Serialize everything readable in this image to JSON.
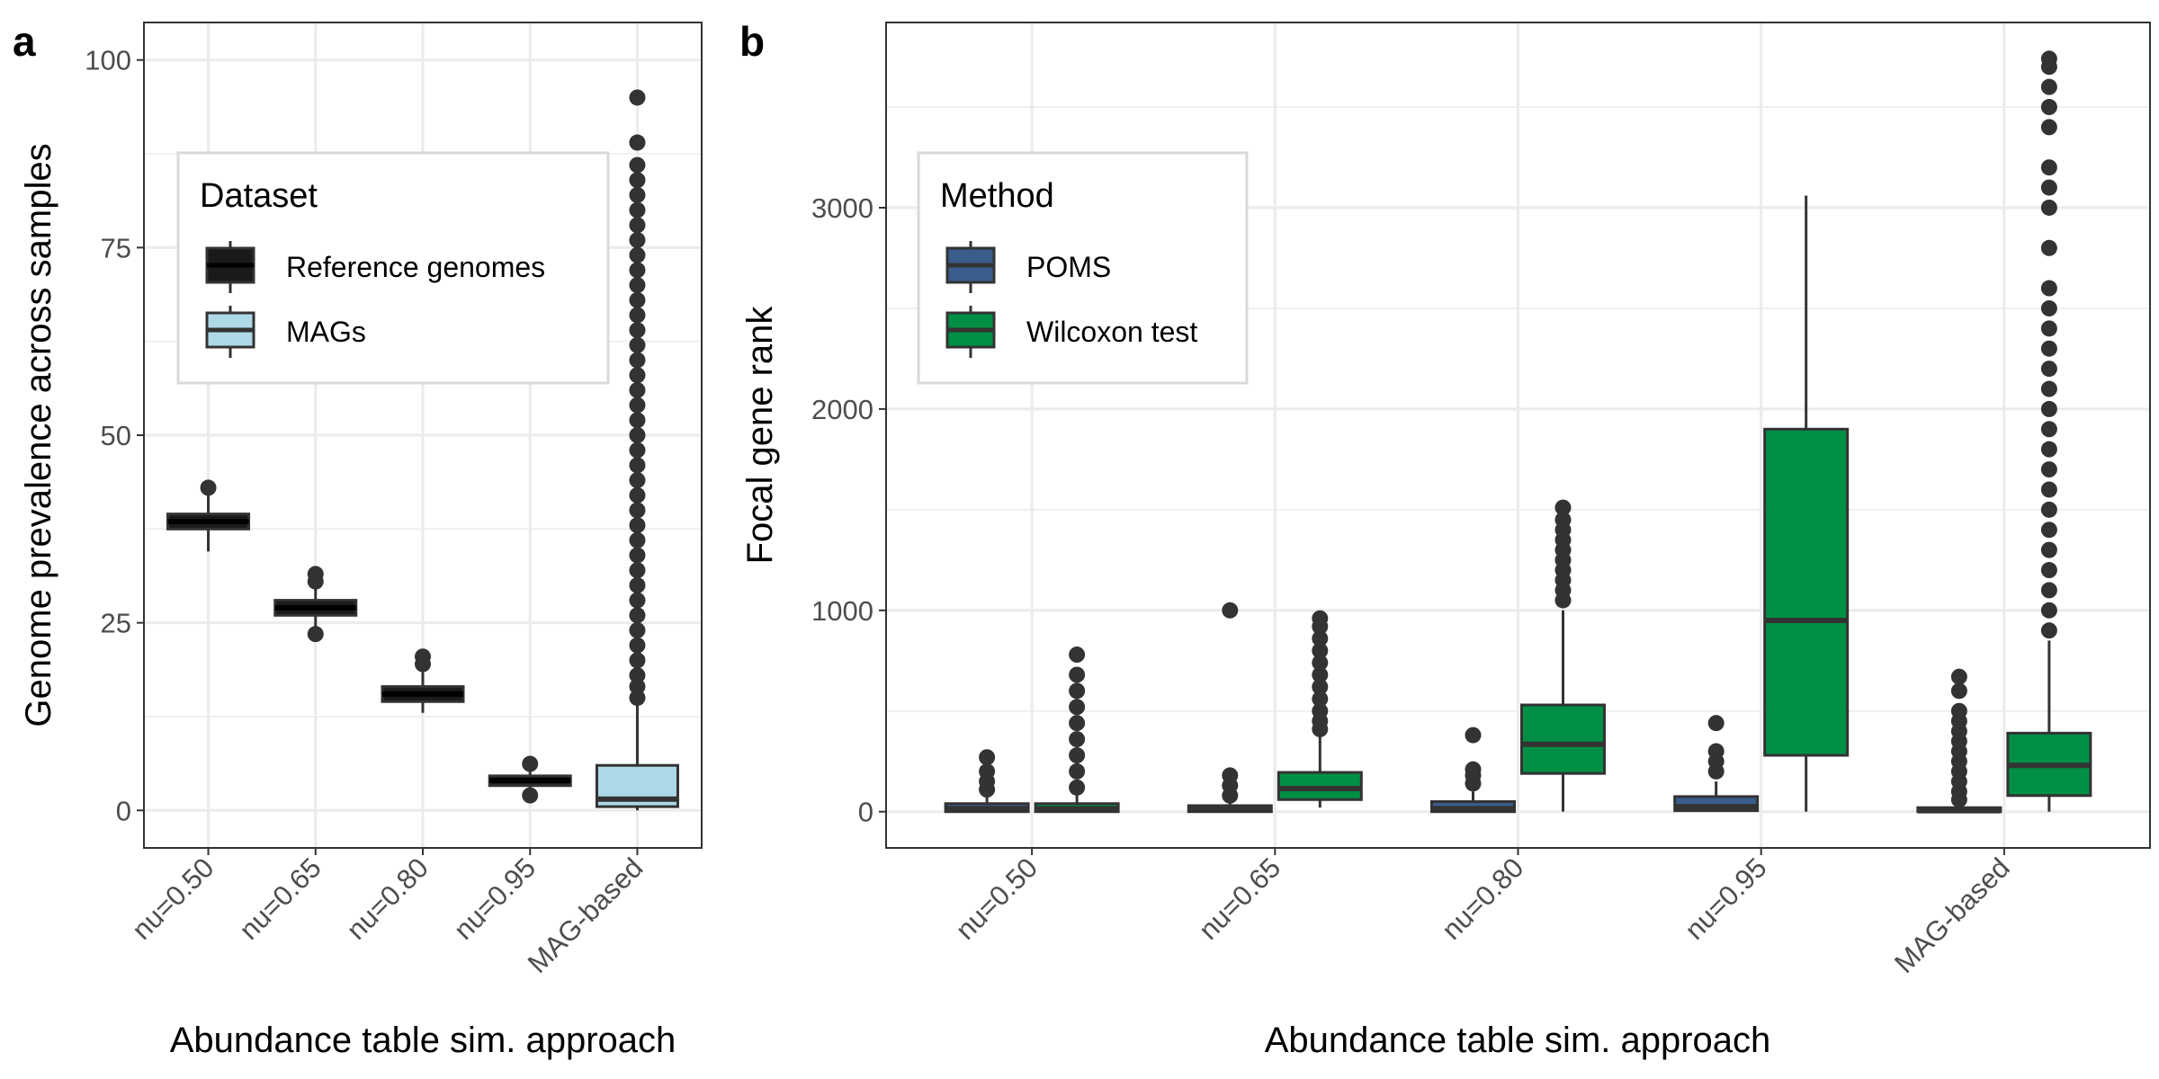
{
  "figure": {
    "colors": {
      "reference_genomes": "#1a1a1a",
      "mags": "#add8e6",
      "poms": "#3a5e8c",
      "wilcoxon": "#008f45",
      "box_stroke": "#333333",
      "grid": "#ebebeb",
      "panel_border": "#333333"
    }
  },
  "chart_data": [
    {
      "type": "box",
      "panel_label": "a",
      "xlabel": "Abundance table sim. approach",
      "ylabel": "Genome prevalence across samples",
      "ylim": [
        -5,
        105
      ],
      "yticks": [
        0,
        25,
        50,
        75,
        100
      ],
      "tick_labels": [
        "0",
        "25",
        "50",
        "75",
        "100"
      ],
      "categories": [
        "nu=0.50",
        "nu=0.65",
        "nu=0.80",
        "nu=0.95",
        "MAG-based"
      ],
      "grid": true,
      "legend": {
        "title": "Dataset",
        "placement": "top-left",
        "entries": [
          {
            "label": "Reference genomes",
            "color": "#1a1a1a"
          },
          {
            "label": "MAGs",
            "color": "#add8e6"
          }
        ]
      },
      "series": [
        {
          "name": "Reference genomes",
          "color": "#1a1a1a",
          "boxes": [
            {
              "category": "nu=0.50",
              "q1": 37.5,
              "median": 38.5,
              "q3": 39.5,
              "whisker_low": 34.5,
              "whisker_high": 42,
              "outliers": [
                43
              ]
            },
            {
              "category": "nu=0.65",
              "q1": 26,
              "median": 27,
              "q3": 28,
              "whisker_low": 24,
              "whisker_high": 30,
              "outliers": [
                23.5,
                30.5,
                31.5
              ]
            },
            {
              "category": "nu=0.80",
              "q1": 14.5,
              "median": 15.5,
              "q3": 16.5,
              "whisker_low": 13,
              "whisker_high": 18.5,
              "outliers": [
                19.5,
                20.5
              ]
            },
            {
              "category": "nu=0.95",
              "q1": 3.3,
              "median": 4,
              "q3": 4.6,
              "whisker_low": 2.5,
              "whisker_high": 5.5,
              "outliers": [
                2,
                6.2
              ]
            }
          ]
        },
        {
          "name": "MAGs",
          "color": "#add8e6",
          "boxes": [
            {
              "category": "MAG-based",
              "q1": 0.5,
              "median": 1.5,
              "q3": 6,
              "whisker_low": 0,
              "whisker_high": 14,
              "outliers": [
                15,
                16.5,
                18,
                20,
                22,
                24,
                26,
                28,
                30,
                32,
                34,
                36,
                38,
                40,
                42,
                44,
                46,
                48,
                50,
                52,
                54,
                56,
                58,
                60,
                62,
                64,
                66,
                68,
                70,
                72,
                74,
                76,
                78,
                80,
                82,
                84,
                86,
                89,
                95
              ]
            }
          ]
        }
      ]
    },
    {
      "type": "box",
      "panel_label": "b",
      "xlabel": "Abundance table sim. approach",
      "ylabel": "Focal gene rank",
      "ylim": [
        -180,
        3920
      ],
      "yticks": [
        0,
        1000,
        2000,
        3000
      ],
      "tick_labels": [
        "0",
        "1000",
        "2000",
        "3000"
      ],
      "categories": [
        "nu=0.50",
        "nu=0.65",
        "nu=0.80",
        "nu=0.95",
        "MAG-based"
      ],
      "grid": true,
      "legend": {
        "title": "Method",
        "placement": "top-left",
        "entries": [
          {
            "label": "POMS",
            "color": "#3a5e8c"
          },
          {
            "label": "Wilcoxon test",
            "color": "#008f45"
          }
        ]
      },
      "series": [
        {
          "name": "POMS",
          "color": "#3a5e8c",
          "boxes": [
            {
              "category": "nu=0.50",
              "q1": 0,
              "median": 15,
              "q3": 40,
              "whisker_low": 0,
              "whisker_high": 90,
              "outliers": [
                110,
                150,
                200,
                270
              ]
            },
            {
              "category": "nu=0.65",
              "q1": 0,
              "median": 10,
              "q3": 30,
              "whisker_low": 0,
              "whisker_high": 60,
              "outliers": [
                80,
                130,
                180,
                1000
              ]
            },
            {
              "category": "nu=0.80",
              "q1": 0,
              "median": 15,
              "q3": 50,
              "whisker_low": 0,
              "whisker_high": 100,
              "outliers": [
                140,
                180,
                210,
                380
              ]
            },
            {
              "category": "nu=0.95",
              "q1": 5,
              "median": 25,
              "q3": 75,
              "whisker_low": 0,
              "whisker_high": 150,
              "outliers": [
                200,
                250,
                300,
                440
              ]
            },
            {
              "category": "MAG-based",
              "q1": 0,
              "median": 5,
              "q3": 20,
              "whisker_low": 0,
              "whisker_high": 40,
              "outliers": [
                60,
                100,
                150,
                200,
                250,
                300,
                350,
                400,
                450,
                500,
                600,
                670
              ]
            }
          ]
        },
        {
          "name": "Wilcoxon test",
          "color": "#008f45",
          "boxes": [
            {
              "category": "nu=0.50",
              "q1": 0,
              "median": 15,
              "q3": 40,
              "whisker_low": 0,
              "whisker_high": 90,
              "outliers": [
                120,
                200,
                280,
                360,
                440,
                520,
                600,
                680,
                780
              ]
            },
            {
              "category": "nu=0.65",
              "q1": 60,
              "median": 115,
              "q3": 195,
              "whisker_low": 20,
              "whisker_high": 390,
              "outliers": [
                410,
                450,
                500,
                560,
                620,
                680,
                740,
                800,
                860,
                920,
                960
              ]
            },
            {
              "category": "nu=0.80",
              "q1": 190,
              "median": 335,
              "q3": 530,
              "whisker_low": 0,
              "whisker_high": 1000,
              "outliers": [
                1050,
                1100,
                1150,
                1200,
                1250,
                1300,
                1350,
                1400,
                1450,
                1510
              ]
            },
            {
              "category": "nu=0.95",
              "q1": 280,
              "median": 950,
              "q3": 1900,
              "whisker_low": 0,
              "whisker_high": 3060,
              "outliers": []
            },
            {
              "category": "MAG-based",
              "q1": 80,
              "median": 230,
              "q3": 390,
              "whisker_low": 0,
              "whisker_high": 850,
              "outliers": [
                900,
                1000,
                1100,
                1200,
                1300,
                1400,
                1500,
                1600,
                1700,
                1800,
                1900,
                2000,
                2100,
                2200,
                2300,
                2400,
                2500,
                2600,
                2800,
                3000,
                3100,
                3200,
                3400,
                3500,
                3600,
                3700,
                3740
              ]
            }
          ]
        }
      ]
    }
  ]
}
